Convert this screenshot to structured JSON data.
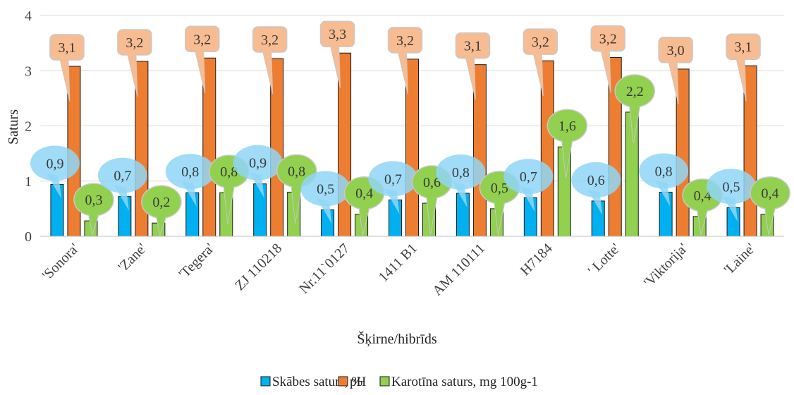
{
  "chart_data": {
    "type": "bar",
    "xlabel": "Šķirne/hibrīds",
    "ylabel": "Saturs",
    "ylim": [
      0,
      4
    ],
    "yticks": [
      "0",
      "1",
      "2",
      "3",
      "4"
    ],
    "grid": true,
    "legend_position": "bottom",
    "categories": [
      "'Sonora'",
      "'Zane'",
      "'Tegera'",
      "ZJ 110218",
      "Nr.11`0127",
      "1411 B1",
      "AM 110111",
      "H7184",
      "' Lotte'",
      "'Viktorija'",
      "'Laine'"
    ],
    "series": [
      {
        "name": "Skābes saturs, %",
        "color": "#00b0f0",
        "callout_color": "#8fd6f6",
        "values": [
          0.94,
          0.72,
          0.79,
          0.95,
          0.48,
          0.66,
          0.78,
          0.7,
          0.64,
          0.8,
          0.52
        ],
        "labels": [
          "0,9",
          "0,7",
          "0,8",
          "0,9",
          "0,5",
          "0,7",
          "0,8",
          "0,7",
          "0,6",
          "0,8",
          "0,5"
        ]
      },
      {
        "name": "pH",
        "color": "#ed7d31",
        "callout_color": "#f7bc92",
        "values": [
          3.08,
          3.17,
          3.23,
          3.22,
          3.32,
          3.21,
          3.11,
          3.18,
          3.24,
          3.03,
          3.09
        ],
        "labels": [
          "3,1",
          "3,2",
          "3,2",
          "3,2",
          "3,3",
          "3,2",
          "3,1",
          "3,2",
          "3,2",
          "3,0",
          "3,1"
        ]
      },
      {
        "name": "Karotīna saturs, mg 100g-1",
        "color": "#92d050",
        "callout_color": "#92d050",
        "values": [
          0.28,
          0.24,
          0.79,
          0.8,
          0.4,
          0.6,
          0.5,
          1.62,
          2.25,
          0.36,
          0.4
        ],
        "labels": [
          "0,3",
          "0,2",
          "0,8",
          "0,8",
          "0,4",
          "0,6",
          "0,5",
          "1,6",
          "2,2",
          "0,4",
          "0,4"
        ]
      }
    ]
  }
}
